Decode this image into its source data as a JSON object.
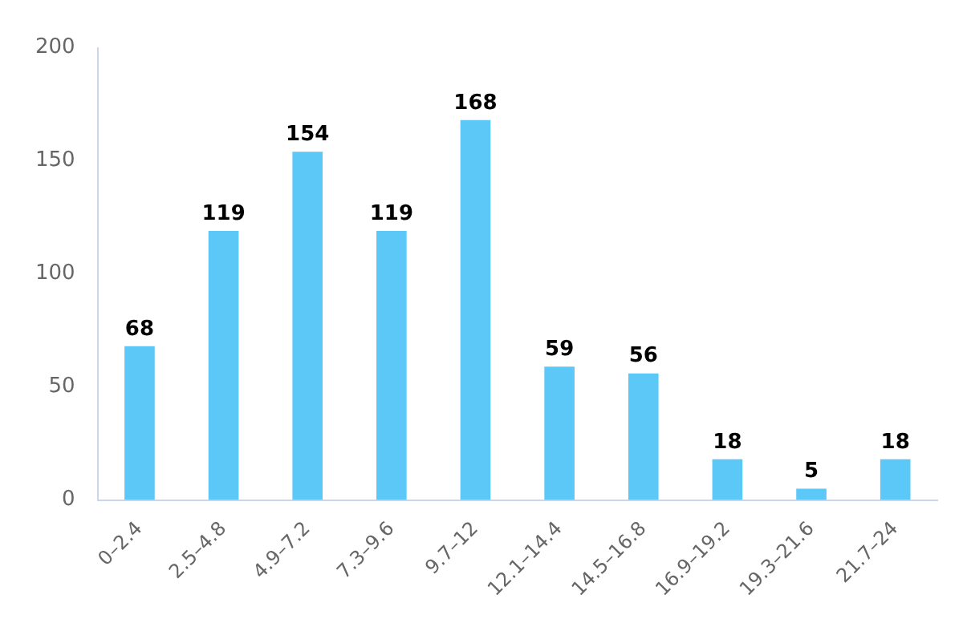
{
  "chart_data": {
    "type": "bar",
    "categories": [
      "0–2.4",
      "2.5–4.8",
      "4.9–7.2",
      "7.3–9.6",
      "9.7–12",
      "12.1–14.4",
      "14.5–16.8",
      "16.9–19.2",
      "19.3–21.6",
      "21.7–24"
    ],
    "values": [
      68,
      119,
      154,
      119,
      168,
      59,
      56,
      18,
      5,
      18
    ],
    "color": "#5bc8f7",
    "ylim": [
      0,
      200
    ],
    "yticks": [
      0,
      50,
      100,
      150,
      200
    ],
    "grid": false,
    "legend": false,
    "data_labels": true
  }
}
